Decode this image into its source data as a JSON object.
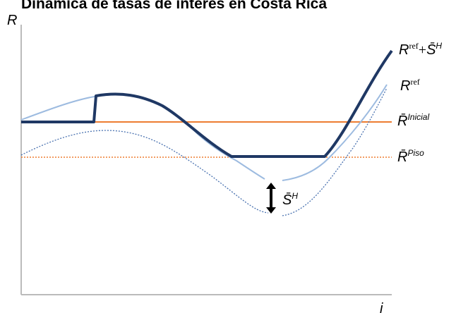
{
  "header": {
    "title": "Dinámica de tasas de interés en Costa Rica"
  },
  "axes": {
    "y_label": "R",
    "x_label": "i"
  },
  "curve_labels": {
    "ref_plus_spread": {
      "base": "R",
      "sup": "ref",
      "plus": "+",
      "base2": "S̄",
      "sup2": "H"
    },
    "ref": {
      "base": "R",
      "sup": "ref"
    },
    "initial": {
      "base": "R̄",
      "sup": "Inicial"
    },
    "floor": {
      "base": "R̄",
      "sup": "Piso"
    },
    "spread": {
      "base": "S̄",
      "sup": "H"
    }
  }
}
